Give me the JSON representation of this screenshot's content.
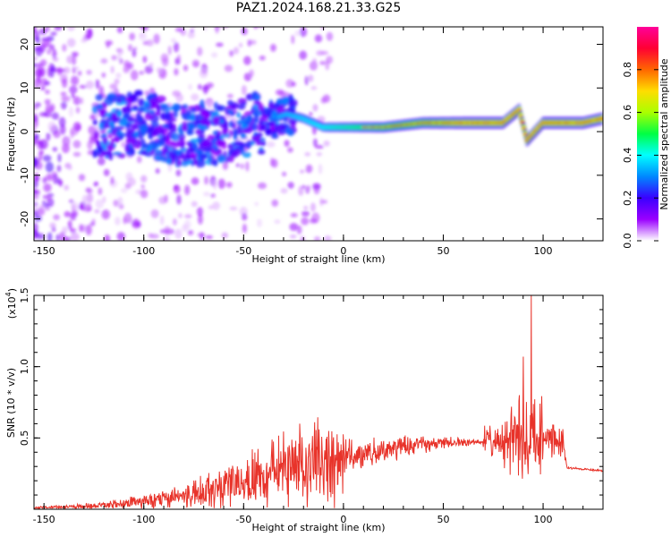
{
  "title": "PAZ1.2024.168.21.33.G25",
  "colors": {
    "line": "#e8332a",
    "frame": "#000000"
  },
  "chart_data": [
    {
      "type": "heatmap",
      "xlabel": "Height of straight line (km)",
      "ylabel": "Frequency (Hz)",
      "xlim": [
        -155,
        130
      ],
      "ylim": [
        -25,
        24
      ],
      "xticks": [
        -150,
        -100,
        -50,
        0,
        50,
        100
      ],
      "yticks": [
        -20,
        -10,
        0,
        10,
        20
      ],
      "colorbar": {
        "label": "Normalized spectral amplitude",
        "range": [
          0,
          1
        ],
        "ticks": [
          "0.0",
          "0.2",
          "0.4",
          "0.6",
          "0.8"
        ],
        "colormap": [
          "#ffffff",
          "#9a00ff",
          "#3a00ff",
          "#0088ff",
          "#00ffff",
          "#00ff44",
          "#aaff00",
          "#ffdd00",
          "#ff6600",
          "#ff0033",
          "#ff0099"
        ]
      },
      "ridge": [
        {
          "x": -120,
          "f": 1
        },
        {
          "x": -100,
          "f": 2
        },
        {
          "x": -80,
          "f": -1
        },
        {
          "x": -60,
          "f": 0
        },
        {
          "x": -40,
          "f": 2
        },
        {
          "x": -28,
          "f": 4
        },
        {
          "x": -20,
          "f": 3
        },
        {
          "x": -10,
          "f": 1
        },
        {
          "x": 0,
          "f": 1
        },
        {
          "x": 20,
          "f": 1
        },
        {
          "x": 40,
          "f": 2
        },
        {
          "x": 60,
          "f": 2
        },
        {
          "x": 80,
          "f": 2
        },
        {
          "x": 88,
          "f": 5
        },
        {
          "x": 92,
          "f": -2
        },
        {
          "x": 100,
          "f": 2
        },
        {
          "x": 120,
          "f": 2
        },
        {
          "x": 130,
          "f": 3
        }
      ]
    },
    {
      "type": "line",
      "xlabel": "Height of straight line (km)",
      "ylabel": "SNR (10 * v/v)",
      "y_multiplier": "(x10",
      "y_multiplier_exp": "4",
      "xlim": [
        -155,
        130
      ],
      "ylim": [
        0,
        1.5
      ],
      "xticks": [
        -150,
        -100,
        -50,
        0,
        50,
        100
      ],
      "yticks": [
        "0.5",
        "1.0",
        "1.5"
      ],
      "envelope": [
        {
          "x": -155,
          "y": 0.01
        },
        {
          "x": -130,
          "y": 0.02
        },
        {
          "x": -110,
          "y": 0.04
        },
        {
          "x": -90,
          "y": 0.07
        },
        {
          "x": -70,
          "y": 0.12
        },
        {
          "x": -55,
          "y": 0.17
        },
        {
          "x": -40,
          "y": 0.24
        },
        {
          "x": -25,
          "y": 0.3
        },
        {
          "x": -10,
          "y": 0.34
        },
        {
          "x": 0,
          "y": 0.36
        },
        {
          "x": 10,
          "y": 0.38
        },
        {
          "x": 20,
          "y": 0.41
        },
        {
          "x": 30,
          "y": 0.44
        },
        {
          "x": 40,
          "y": 0.46
        },
        {
          "x": 50,
          "y": 0.47
        },
        {
          "x": 60,
          "y": 0.47
        },
        {
          "x": 70,
          "y": 0.47
        },
        {
          "x": 80,
          "y": 0.47
        },
        {
          "x": 90,
          "y": 0.48
        },
        {
          "x": 100,
          "y": 0.5
        },
        {
          "x": 110,
          "y": 0.49
        },
        {
          "x": 112,
          "y": 0.29
        },
        {
          "x": 130,
          "y": 0.27
        }
      ],
      "peaks": [
        {
          "x": -22,
          "y": 0.6
        },
        {
          "x": 88,
          "y": 0.8
        },
        {
          "x": 90,
          "y": 1.07
        },
        {
          "x": 94,
          "y": 1.5
        }
      ]
    }
  ]
}
